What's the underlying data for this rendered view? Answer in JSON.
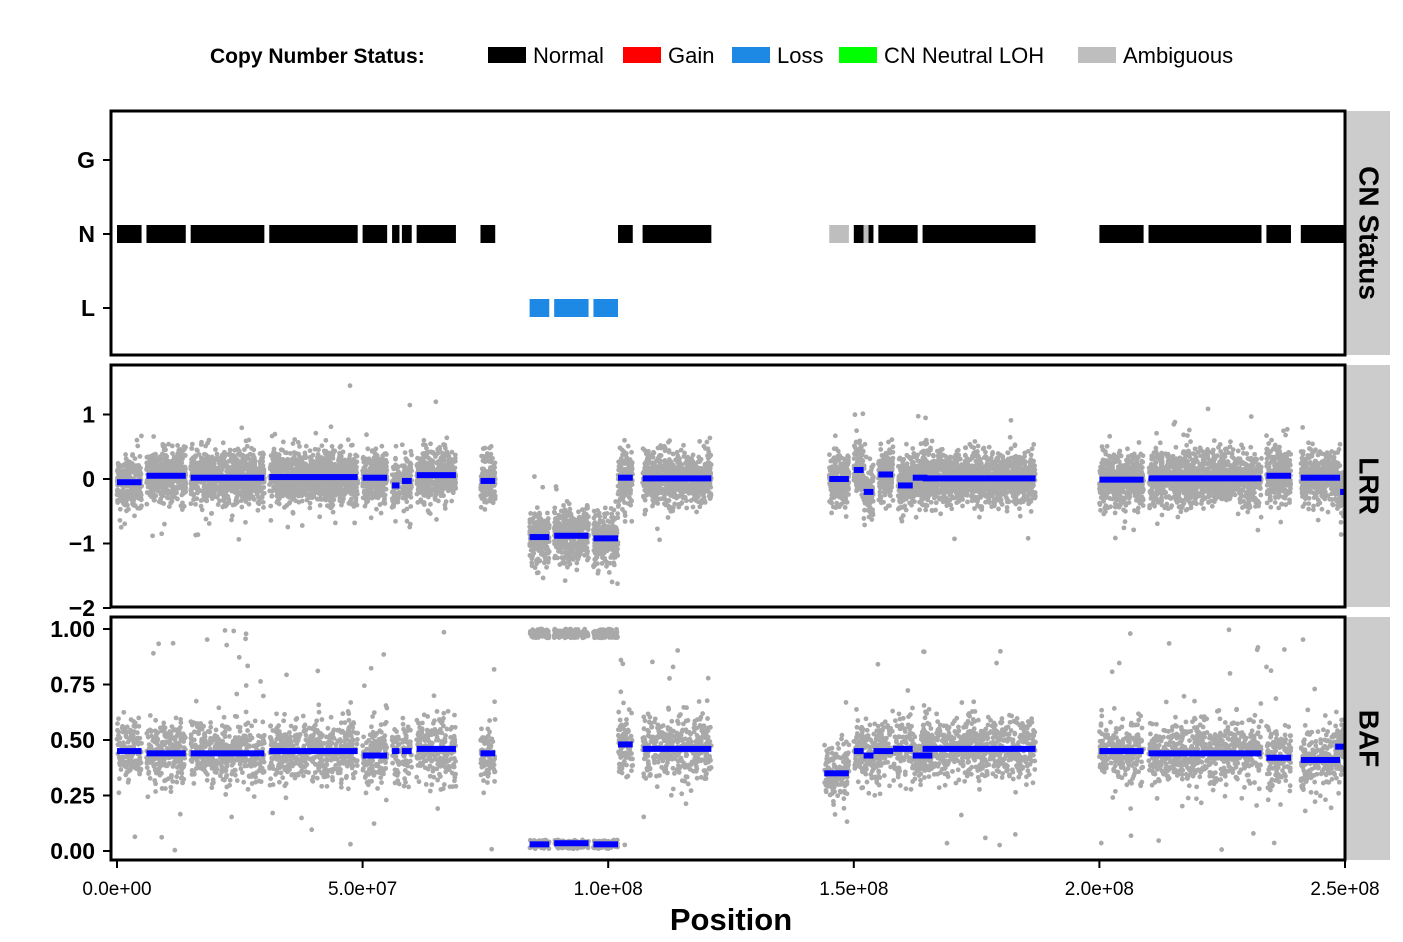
{
  "legend": {
    "title": "Copy Number Status:",
    "items": [
      {
        "label": "Normal",
        "color": "#000000"
      },
      {
        "label": "Gain",
        "color": "#ff0000"
      },
      {
        "label": "Loss",
        "color": "#1e88e5"
      },
      {
        "label": "CN Neutral LOH",
        "color": "#00ff00"
      },
      {
        "label": "Ambiguous",
        "color": "#bebebe"
      }
    ]
  },
  "chart_data": {
    "type": "scatter",
    "xlabel": "Position",
    "xlim": [
      0,
      250000000
    ],
    "xticks": [
      0,
      50000000,
      100000000,
      150000000,
      200000000,
      250000000
    ],
    "xtick_labels": [
      "0.0e+00",
      "5.0e+07",
      "1.0e+08",
      "1.5e+08",
      "2.0e+08",
      "2.5e+08"
    ],
    "grid": false,
    "legend_position": "top",
    "point_color": "#a9a9a9",
    "segment_color": "#0000ff",
    "panels": [
      {
        "strip_label": "CN Status",
        "ylim": [
          -0.7,
          2.7
        ],
        "yticks": [
          0,
          1,
          2
        ],
        "ytick_labels": [
          "L",
          "N",
          "G"
        ],
        "segments": [
          {
            "start": 0,
            "end": 5000000,
            "status": "Normal",
            "level": 1
          },
          {
            "start": 6000000,
            "end": 14000000,
            "status": "Normal",
            "level": 1
          },
          {
            "start": 15000000,
            "end": 30000000,
            "status": "Normal",
            "level": 1
          },
          {
            "start": 31000000,
            "end": 49000000,
            "status": "Normal",
            "level": 1
          },
          {
            "start": 50000000,
            "end": 55000000,
            "status": "Normal",
            "level": 1
          },
          {
            "start": 56000000,
            "end": 57500000,
            "status": "Normal",
            "level": 1
          },
          {
            "start": 58000000,
            "end": 60000000,
            "status": "Normal",
            "level": 1
          },
          {
            "start": 61000000,
            "end": 69000000,
            "status": "Normal",
            "level": 1
          },
          {
            "start": 74000000,
            "end": 77000000,
            "status": "Normal",
            "level": 1
          },
          {
            "start": 84000000,
            "end": 88000000,
            "status": "Loss",
            "level": 0
          },
          {
            "start": 89000000,
            "end": 96000000,
            "status": "Loss",
            "level": 0
          },
          {
            "start": 97000000,
            "end": 102000000,
            "status": "Loss",
            "level": 0
          },
          {
            "start": 102000000,
            "end": 105000000,
            "status": "Normal",
            "level": 1
          },
          {
            "start": 107000000,
            "end": 121000000,
            "status": "Normal",
            "level": 1
          },
          {
            "start": 145000000,
            "end": 149000000,
            "status": "Ambiguous",
            "level": 1
          },
          {
            "start": 150000000,
            "end": 152000000,
            "status": "Normal",
            "level": 1
          },
          {
            "start": 152000000,
            "end": 153000000,
            "status": "Ambiguous",
            "level": 1
          },
          {
            "start": 153000000,
            "end": 154000000,
            "status": "Normal",
            "level": 1
          },
          {
            "start": 155000000,
            "end": 163000000,
            "status": "Normal",
            "level": 1
          },
          {
            "start": 164000000,
            "end": 187000000,
            "status": "Normal",
            "level": 1
          },
          {
            "start": 200000000,
            "end": 209000000,
            "status": "Normal",
            "level": 1
          },
          {
            "start": 210000000,
            "end": 233000000,
            "status": "Normal",
            "level": 1
          },
          {
            "start": 234000000,
            "end": 239000000,
            "status": "Normal",
            "level": 1
          },
          {
            "start": 241000000,
            "end": 250000000,
            "status": "Normal",
            "level": 1
          }
        ]
      },
      {
        "strip_label": "LRR",
        "ylim": [
          -2,
          1.75
        ],
        "yticks": [
          -2,
          -1,
          0,
          1
        ],
        "ytick_labels": [
          "−2",
          "−1",
          "0",
          "1"
        ],
        "segments": [
          {
            "start": 0,
            "end": 5000000,
            "value": -0.05
          },
          {
            "start": 6000000,
            "end": 14000000,
            "value": 0.05
          },
          {
            "start": 15000000,
            "end": 30000000,
            "value": 0.02
          },
          {
            "start": 31000000,
            "end": 49000000,
            "value": 0.03
          },
          {
            "start": 50000000,
            "end": 55000000,
            "value": 0.02
          },
          {
            "start": 56000000,
            "end": 57500000,
            "value": -0.1
          },
          {
            "start": 58000000,
            "end": 60000000,
            "value": -0.03
          },
          {
            "start": 61000000,
            "end": 69000000,
            "value": 0.06
          },
          {
            "start": 74000000,
            "end": 77000000,
            "value": -0.03
          },
          {
            "start": 84000000,
            "end": 88000000,
            "value": -0.9
          },
          {
            "start": 89000000,
            "end": 96000000,
            "value": -0.88
          },
          {
            "start": 97000000,
            "end": 102000000,
            "value": -0.92
          },
          {
            "start": 102000000,
            "end": 105000000,
            "value": 0.02
          },
          {
            "start": 107000000,
            "end": 121000000,
            "value": 0.01
          },
          {
            "start": 145000000,
            "end": 149000000,
            "value": 0.0
          },
          {
            "start": 150000000,
            "end": 152000000,
            "value": 0.14
          },
          {
            "start": 152000000,
            "end": 154000000,
            "value": -0.2
          },
          {
            "start": 155000000,
            "end": 158000000,
            "value": 0.07
          },
          {
            "start": 159000000,
            "end": 162000000,
            "value": -0.1
          },
          {
            "start": 162000000,
            "end": 165000000,
            "value": 0.02
          },
          {
            "start": 164000000,
            "end": 187000000,
            "value": 0.01
          },
          {
            "start": 200000000,
            "end": 209000000,
            "value": -0.01
          },
          {
            "start": 210000000,
            "end": 233000000,
            "value": 0.01
          },
          {
            "start": 234000000,
            "end": 239000000,
            "value": 0.05
          },
          {
            "start": 241000000,
            "end": 249000000,
            "value": 0.02
          },
          {
            "start": 249000000,
            "end": 250000000,
            "value": -0.2
          }
        ]
      },
      {
        "strip_label": "BAF",
        "ylim": [
          -0.02,
          1.02
        ],
        "yticks": [
          0,
          0.25,
          0.5,
          0.75,
          1
        ],
        "ytick_labels": [
          "0.00",
          "0.25",
          "0.50",
          "0.75",
          "1.00"
        ],
        "segments": [
          {
            "start": 0,
            "end": 5000000,
            "value": 0.45
          },
          {
            "start": 6000000,
            "end": 14000000,
            "value": 0.44
          },
          {
            "start": 15000000,
            "end": 30000000,
            "value": 0.44
          },
          {
            "start": 31000000,
            "end": 49000000,
            "value": 0.45
          },
          {
            "start": 50000000,
            "end": 55000000,
            "value": 0.43
          },
          {
            "start": 56000000,
            "end": 57500000,
            "value": 0.45
          },
          {
            "start": 58000000,
            "end": 60000000,
            "value": 0.45
          },
          {
            "start": 61000000,
            "end": 69000000,
            "value": 0.46
          },
          {
            "start": 74000000,
            "end": 77000000,
            "value": 0.44
          },
          {
            "start": 84000000,
            "end": 88000000,
            "value": 0.03
          },
          {
            "start": 89000000,
            "end": 96000000,
            "value": 0.035
          },
          {
            "start": 97000000,
            "end": 102000000,
            "value": 0.03
          },
          {
            "start": 102000000,
            "end": 105000000,
            "value": 0.48
          },
          {
            "start": 107000000,
            "end": 121000000,
            "value": 0.46
          },
          {
            "start": 144000000,
            "end": 149000000,
            "value": 0.35
          },
          {
            "start": 150000000,
            "end": 152000000,
            "value": 0.45
          },
          {
            "start": 152000000,
            "end": 154000000,
            "value": 0.43
          },
          {
            "start": 154000000,
            "end": 158000000,
            "value": 0.45
          },
          {
            "start": 158000000,
            "end": 162000000,
            "value": 0.46
          },
          {
            "start": 162000000,
            "end": 166000000,
            "value": 0.43
          },
          {
            "start": 164000000,
            "end": 187000000,
            "value": 0.46
          },
          {
            "start": 200000000,
            "end": 209000000,
            "value": 0.45
          },
          {
            "start": 210000000,
            "end": 233000000,
            "value": 0.44
          },
          {
            "start": 234000000,
            "end": 239000000,
            "value": 0.42
          },
          {
            "start": 241000000,
            "end": 249000000,
            "value": 0.41
          },
          {
            "start": 248000000,
            "end": 250000000,
            "value": 0.47
          }
        ]
      }
    ]
  }
}
